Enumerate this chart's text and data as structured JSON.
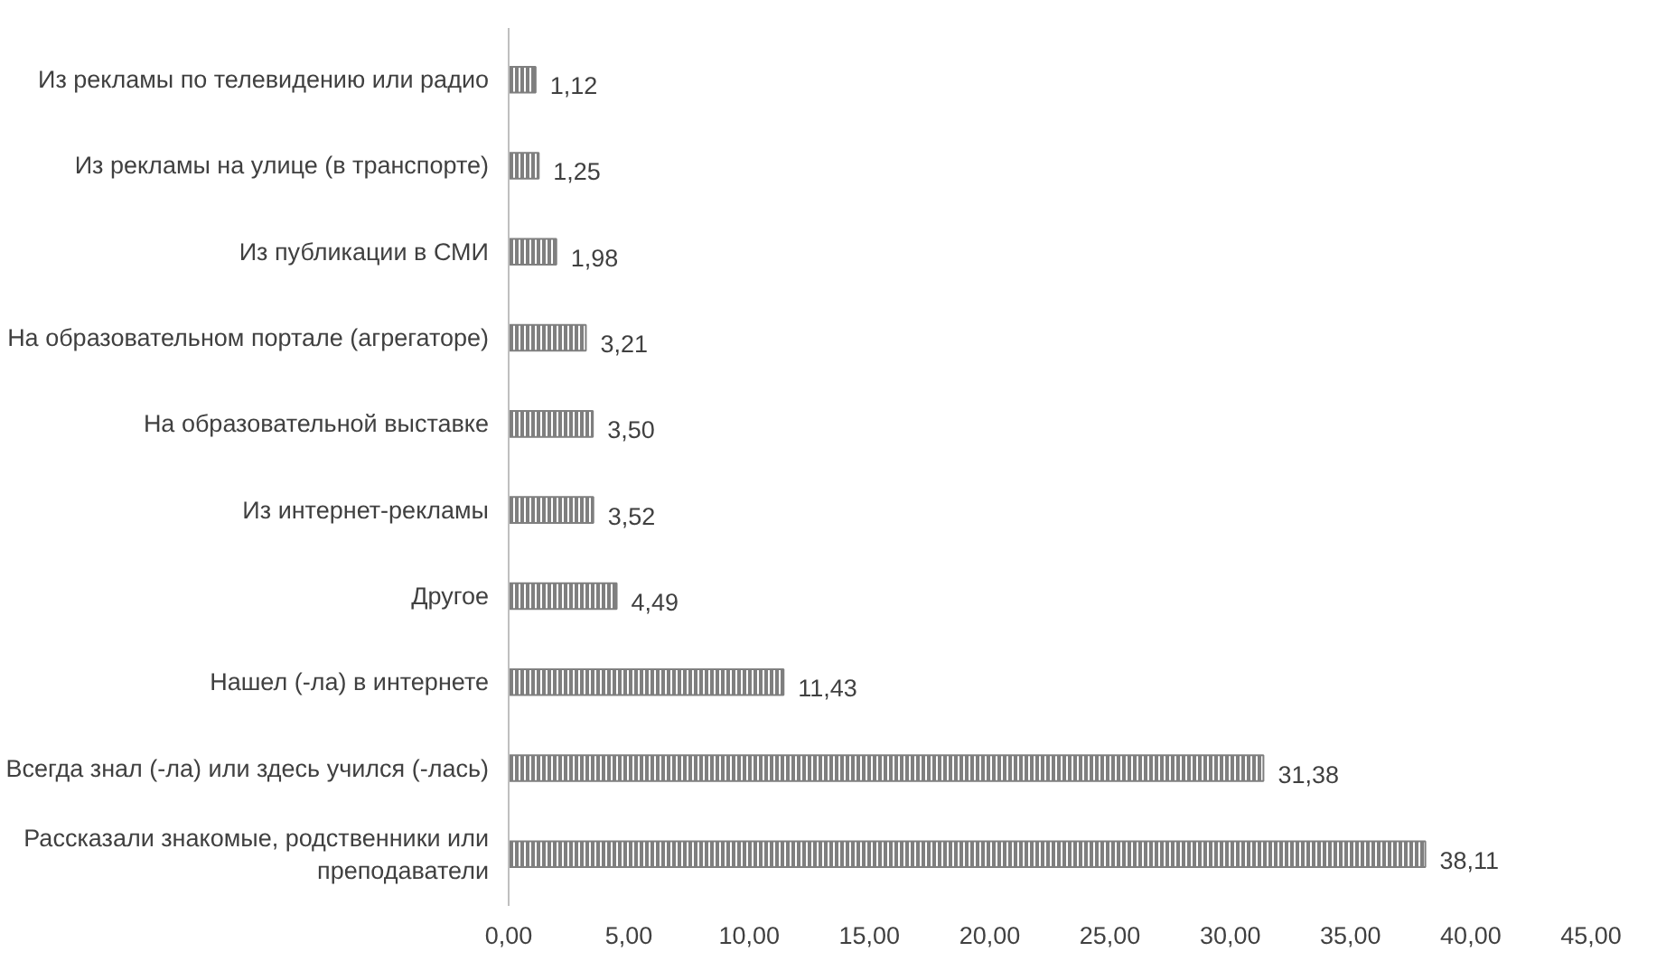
{
  "chart_data": {
    "type": "bar",
    "orientation": "horizontal",
    "categories": [
      "Из рекламы по телевидению или радио",
      "Из рекламы на улице (в транспорте)",
      "Из публикации в СМИ",
      "На образовательном портале (агрегаторе)",
      "На образовательной выставке",
      "Из интернет-рекламы",
      "Другое",
      "Нашел (-ла) в интернете",
      "Всегда знал (-ла) или здесь учился (-лась)",
      "Рассказали знакомые, родственники или преподаватели"
    ],
    "values": [
      1.12,
      1.25,
      1.98,
      3.21,
      3.5,
      3.52,
      4.49,
      11.43,
      31.38,
      38.11
    ],
    "value_labels": [
      "1,12",
      "1,25",
      "1,98",
      "3,21",
      "3,50",
      "3,52",
      "4,49",
      "11,43",
      "31,38",
      "38,11"
    ],
    "color": "#7f7f7f",
    "xlim": [
      0,
      45
    ],
    "xticks": [
      {
        "value": 0,
        "label": "0,00"
      },
      {
        "value": 5,
        "label": "5,00"
      },
      {
        "value": 10,
        "label": "10,00"
      },
      {
        "value": 15,
        "label": "15,00"
      },
      {
        "value": 20,
        "label": "20,00"
      },
      {
        "value": 25,
        "label": "25,00"
      },
      {
        "value": 30,
        "label": "30,00"
      },
      {
        "value": 35,
        "label": "35,00"
      },
      {
        "value": 40,
        "label": "40,00"
      },
      {
        "value": 45,
        "label": "45,00"
      }
    ],
    "grid": false
  }
}
